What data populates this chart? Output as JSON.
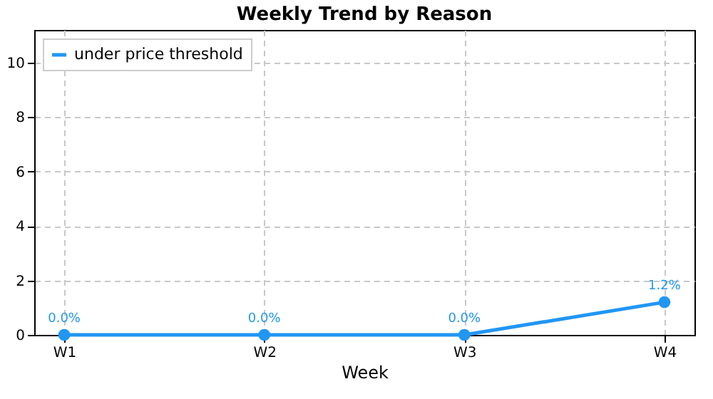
{
  "chart_data": {
    "type": "line",
    "title": "Weekly Trend by Reason",
    "xlabel": "Week",
    "categories": [
      "W1",
      "W2",
      "W3",
      "W4"
    ],
    "series": [
      {
        "name": "under price threshold",
        "color": "#2196f3",
        "values": [
          0,
          0,
          0,
          1.2
        ],
        "value_labels": [
          "0.0%",
          "0.0%",
          "0.0%",
          "1.2%"
        ]
      }
    ],
    "ylim": [
      0,
      11.2
    ],
    "yticks": [
      0,
      2,
      4,
      6,
      8,
      10
    ],
    "grid": true,
    "legend": "top left",
    "marker": "circle"
  }
}
